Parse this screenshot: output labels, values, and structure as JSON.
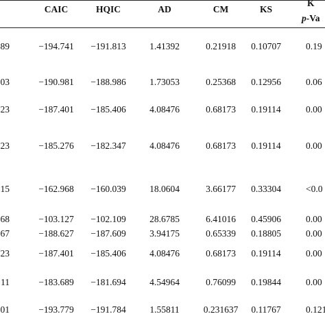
{
  "table": {
    "headers": {
      "caic": "CAIC",
      "hqic": "HQIC",
      "ad": "AD",
      "cm": "CM",
      "ks": "KS",
      "ks_p_top": "K",
      "ks_p_bottom_italic": "p",
      "ks_p_bottom_rest": "-Va"
    },
    "rows": [
      {
        "lead": "89",
        "caic": "−194.741",
        "hqic": "−191.813",
        "ad": "1.41392",
        "cm": "0.21918",
        "ks": "0.10707",
        "p": "0.19"
      },
      {
        "lead": "03",
        "caic": "−190.981",
        "hqic": "−188.986",
        "ad": "1.73053",
        "cm": "0.25368",
        "ks": "0.12956",
        "p": "0.06"
      },
      {
        "lead": "23",
        "caic": "−187.401",
        "hqic": "−185.406",
        "ad": "4.08476",
        "cm": "0.68173",
        "ks": "0.19114",
        "p": "0.00"
      },
      {
        "lead": "23",
        "caic": "−185.276",
        "hqic": "−182.347",
        "ad": "4.08476",
        "cm": "0.68173",
        "ks": "0.19114",
        "p": "0.00"
      },
      {
        "lead": "15",
        "caic": "−162.968",
        "hqic": "−160.039",
        "ad": "18.0604",
        "cm": "3.66177",
        "ks": "0.33304",
        "p": "<0.0"
      },
      {
        "lead": "68",
        "caic": "−103.127",
        "hqic": "−102.109",
        "ad": "28.6785",
        "cm": "6.41016",
        "ks": "0.45906",
        "p": "0.00"
      },
      {
        "lead": "67",
        "caic": "−188.627",
        "hqic": "−187.609",
        "ad": "3.94175",
        "cm": "0.65339",
        "ks": "0.18805",
        "p": "0.00"
      },
      {
        "lead": "23",
        "caic": "−187.401",
        "hqic": "−185.406",
        "ad": "4.08476",
        "cm": "0.68173",
        "ks": "0.19114",
        "p": "0.00"
      },
      {
        "lead": "11",
        "caic": "−183.689",
        "hqic": "−181.694",
        "ad": "4.54964",
        "cm": "0.76099",
        "ks": "0.19844",
        "p": "0.00"
      },
      {
        "lead": "01",
        "caic": "−193.779",
        "hqic": "−191.784",
        "ad": "1.55811",
        "cm": "0.231637",
        "ks": "0.11767",
        "p": "0.121"
      }
    ]
  }
}
